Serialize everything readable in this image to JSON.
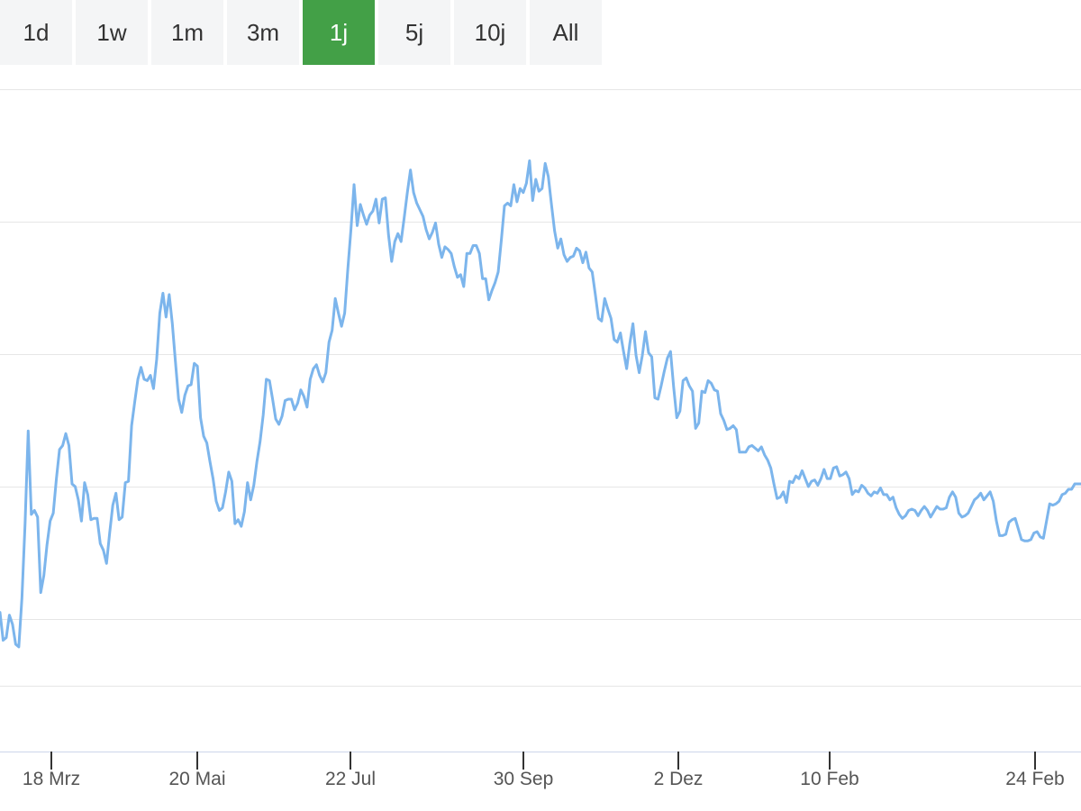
{
  "range_selector": {
    "buttons": [
      {
        "label": "1d",
        "active": false
      },
      {
        "label": "1w",
        "active": false
      },
      {
        "label": "1m",
        "active": false
      },
      {
        "label": "3m",
        "active": false
      },
      {
        "label": "1j",
        "active": true
      },
      {
        "label": "5j",
        "active": false
      },
      {
        "label": "10j",
        "active": false
      },
      {
        "label": "All",
        "active": false
      }
    ],
    "active_color": "#43a047",
    "inactive_color": "#f4f5f6"
  },
  "chart_data": {
    "type": "line",
    "title": "",
    "xlabel": "",
    "ylabel": "",
    "grid": true,
    "line_color": "#7cb5ec",
    "x_ticks": [
      "18 Mrz",
      "20 Mai",
      "22 Jul",
      "30 Sep",
      "2 Dez",
      "10 Feb",
      "24 Feb"
    ],
    "x_ticks_note_values": [
      18,
      65,
      111,
      164,
      211,
      257,
      317
    ],
    "series": [
      {
        "values": [
          20.5,
          18.4,
          18.6,
          20.3,
          19.6,
          18.1,
          17.9,
          21.6,
          27.2,
          34.2,
          27.9,
          28.2,
          27.7,
          22.0,
          23.3,
          25.6,
          27.4,
          28.0,
          30.6,
          32.8,
          33.1,
          34.0,
          33.1,
          30.2,
          30.0,
          29.0,
          27.4,
          30.3,
          29.4,
          27.5,
          27.6,
          27.6,
          25.7,
          25.2,
          24.2,
          26.5,
          28.6,
          29.5,
          27.5,
          27.7,
          30.3,
          30.4,
          34.6,
          36.4,
          38.1,
          39.0,
          38.1,
          38.0,
          38.4,
          37.4,
          39.6,
          43.1,
          44.6,
          42.8,
          44.5,
          42.3,
          39.4,
          36.6,
          35.6,
          36.9,
          37.6,
          37.7,
          39.3,
          39.1,
          35.2,
          33.8,
          33.3,
          31.9,
          30.6,
          28.9,
          28.2,
          28.4,
          29.6,
          31.1,
          30.4,
          27.2,
          27.5,
          27.0,
          28.1,
          30.3,
          29.0,
          30.1,
          31.9,
          33.4,
          35.4,
          38.1,
          38.0,
          36.6,
          35.1,
          34.7,
          35.3,
          36.5,
          36.6,
          36.6,
          35.8,
          36.3,
          37.3,
          36.8,
          36.0,
          38.1,
          38.9,
          39.2,
          38.4,
          37.9,
          38.6,
          40.9,
          41.8,
          44.2,
          43.1,
          42.1,
          43.1,
          46.4,
          49.4,
          52.8,
          49.7,
          51.3,
          50.5,
          49.8,
          50.5,
          50.8,
          51.7,
          49.9,
          51.7,
          51.8,
          49.0,
          47.0,
          48.5,
          49.1,
          48.5,
          50.3,
          52.2,
          53.9,
          52.2,
          51.4,
          50.9,
          50.4,
          49.4,
          48.7,
          49.2,
          49.9,
          48.3,
          47.3,
          48.1,
          47.9,
          47.6,
          46.6,
          45.8,
          46.0,
          45.1,
          47.6,
          47.6,
          48.2,
          48.2,
          47.6,
          45.7,
          45.7,
          44.1,
          44.8,
          45.4,
          46.2,
          48.6,
          51.2,
          51.4,
          51.2,
          52.8,
          51.5,
          52.5,
          52.2,
          52.9,
          54.6,
          51.6,
          53.2,
          52.3,
          52.5,
          54.4,
          53.4,
          51.3,
          49.3,
          48.0,
          48.7,
          47.5,
          47.0,
          47.3,
          47.4,
          48.0,
          47.8,
          46.9,
          47.7,
          46.5,
          46.2,
          44.5,
          42.7,
          42.5,
          44.2,
          43.4,
          42.7,
          41.1,
          40.9,
          41.6,
          40.2,
          38.9,
          40.8,
          42.3,
          39.9,
          38.6,
          39.9,
          41.7,
          40.1,
          39.8,
          36.7,
          36.6,
          37.6,
          38.7,
          39.7,
          40.2,
          37.5,
          35.2,
          35.7,
          38.0,
          38.2,
          37.6,
          37.2,
          34.4,
          34.8,
          37.2,
          37.1,
          38.0,
          37.8,
          37.3,
          37.2,
          35.5,
          35.0,
          34.3,
          34.4,
          34.6,
          34.3,
          32.6,
          32.6,
          32.6,
          33.0,
          33.1,
          32.9,
          32.7,
          33.0,
          32.4,
          32.0,
          31.4,
          30.2,
          29.1,
          29.2,
          29.6,
          28.8,
          30.4,
          30.3,
          30.8,
          30.6,
          31.2,
          30.6,
          30.0,
          30.4,
          30.5,
          30.1,
          30.6,
          31.3,
          30.6,
          30.6,
          31.4,
          31.5,
          30.8,
          30.9,
          31.1,
          30.6,
          29.4,
          29.7,
          29.6,
          30.1,
          29.9,
          29.5,
          29.3,
          29.6,
          29.5,
          29.9,
          29.4,
          29.4,
          29.0,
          29.2,
          28.4,
          27.9,
          27.6,
          27.8,
          28.2,
          28.3,
          28.2,
          27.8,
          28.2,
          28.5,
          28.2,
          27.7,
          28.1,
          28.5,
          28.3,
          28.3,
          28.4,
          29.2,
          29.6,
          29.2,
          28.0,
          27.7,
          27.8,
          28.0,
          28.5,
          29.0,
          29.2,
          29.5,
          29.0,
          29.3,
          29.6,
          28.9,
          27.4,
          26.3,
          26.3,
          26.4,
          27.3,
          27.5,
          27.6,
          26.8,
          26.0,
          25.9,
          25.9,
          26.0,
          26.5,
          26.6,
          26.2,
          26.1,
          27.4,
          28.7,
          28.6,
          28.7,
          28.9,
          29.4,
          29.5,
          29.8,
          29.8,
          30.2,
          30.2,
          30.2
        ]
      }
    ]
  }
}
